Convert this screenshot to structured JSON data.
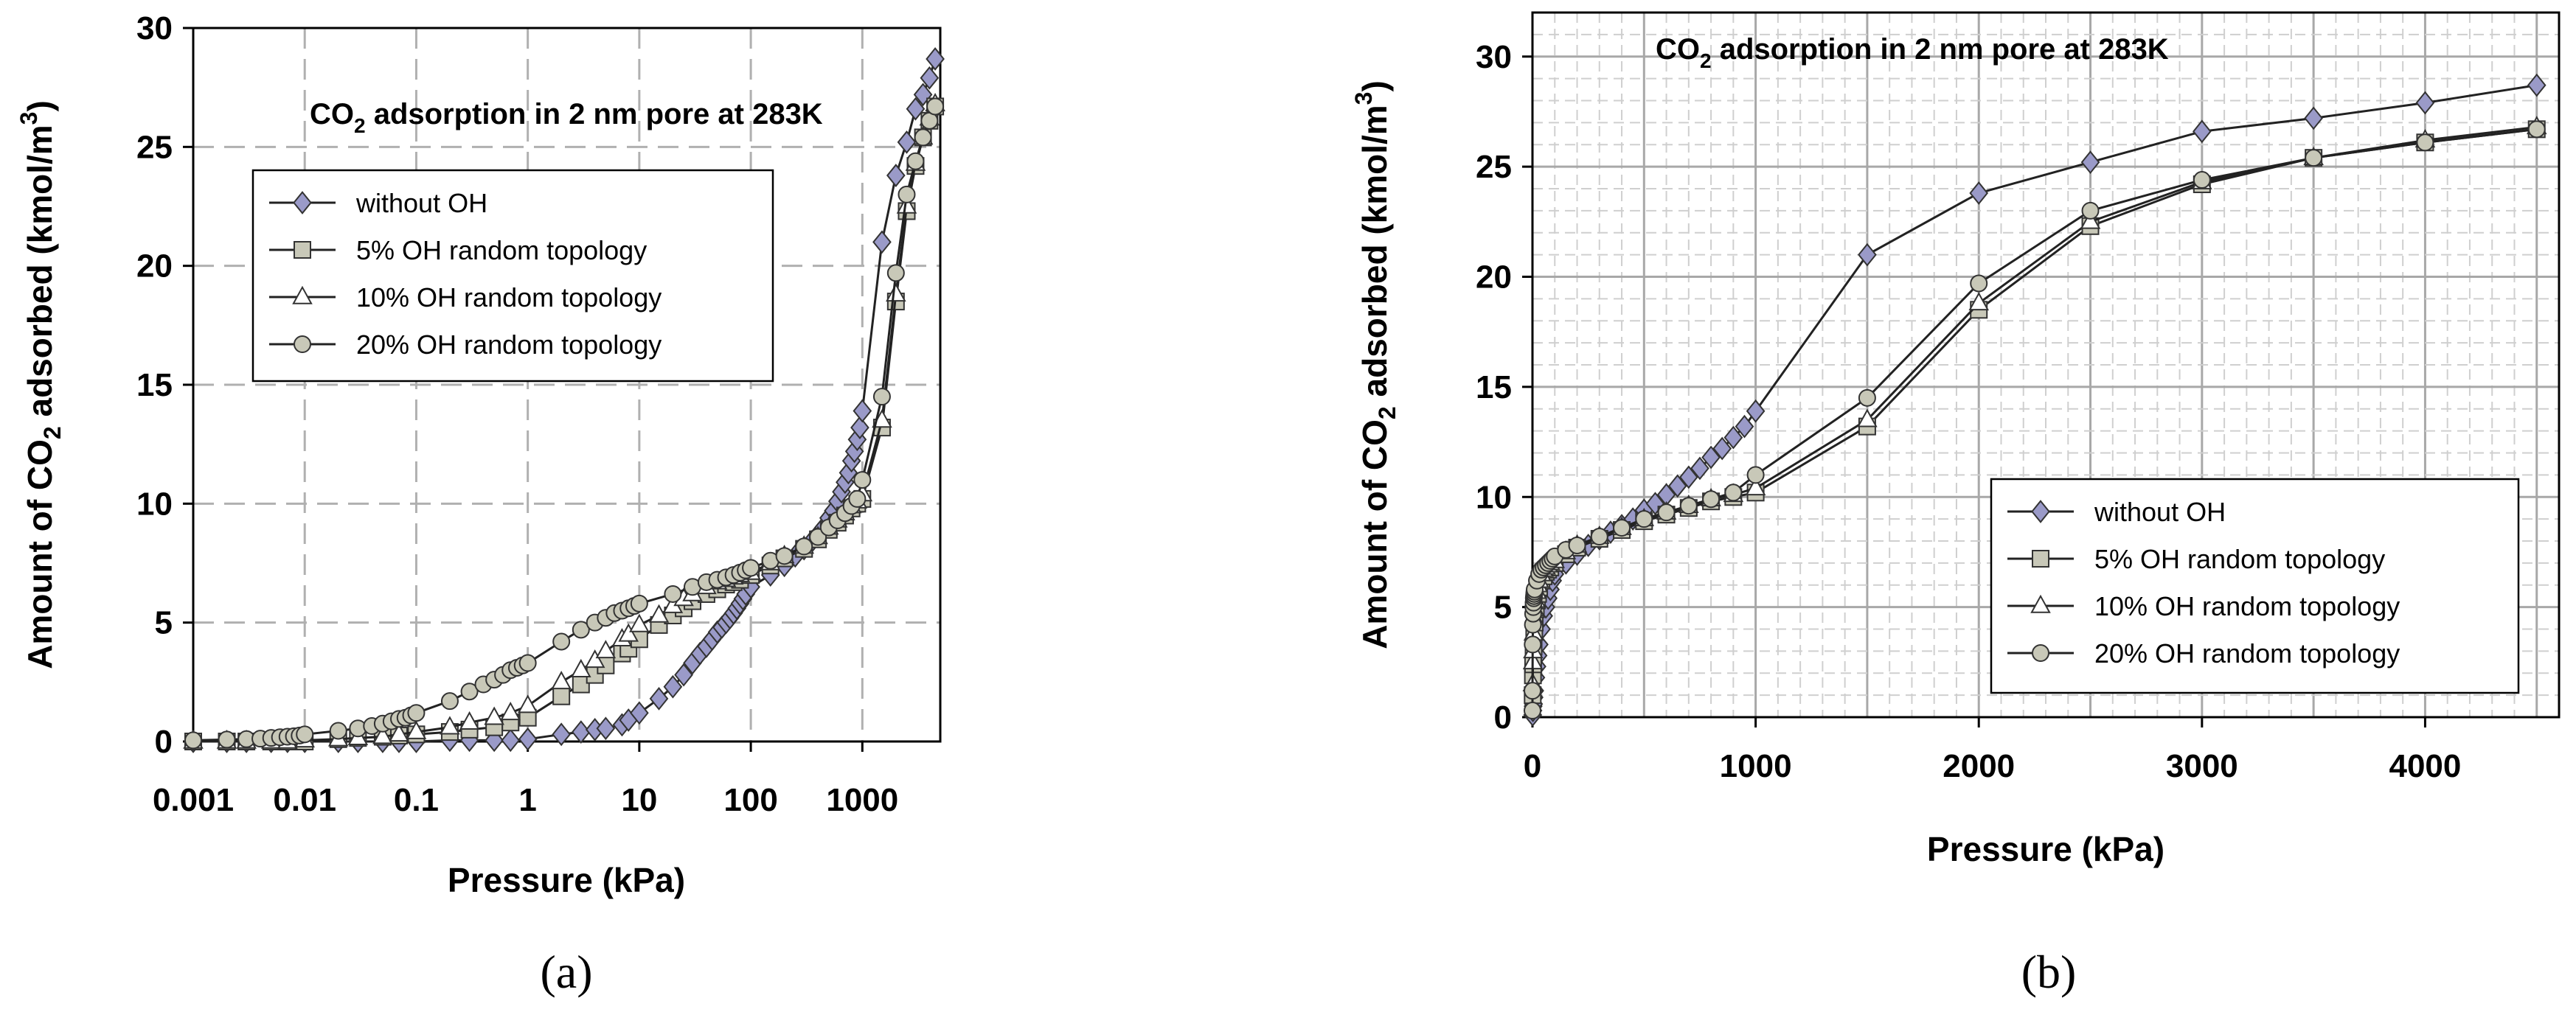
{
  "chart_data": [
    {
      "panel_label": "(a)",
      "type": "line",
      "x_scale": "log",
      "title_main": "CO",
      "title_sub": "2",
      "title_rest": " adsorption in 2 nm pore at 283K",
      "xlabel": "Pressure (kPa)",
      "ylabel_pre": "Amount of CO",
      "ylabel_sub": "2",
      "ylabel_mid": " adsorbed (kmol/m",
      "ylabel_sup": "3",
      "ylabel_post": ")",
      "xlim": [
        0.001,
        5000
      ],
      "ylim": [
        0,
        30
      ],
      "x_ticks": [
        0.001,
        0.01,
        0.1,
        1,
        10,
        100,
        1000
      ],
      "x_tick_labels": [
        "0.001",
        "0.01",
        "0.1",
        "1",
        "10",
        "100",
        "1000"
      ],
      "y_ticks": [
        0,
        5,
        10,
        15,
        20,
        25,
        30
      ],
      "y_tick_labels": [
        "0",
        "5",
        "10",
        "15",
        "20",
        "25",
        "30"
      ],
      "grid": true,
      "legend_position": "upper-left",
      "series": [
        {
          "name": "without OH",
          "marker": "diamond",
          "fill": "#9a9ac8",
          "x": [
            0.001,
            0.002,
            0.003,
            0.005,
            0.007,
            0.01,
            0.02,
            0.03,
            0.05,
            0.07,
            0.1,
            0.2,
            0.3,
            0.5,
            0.7,
            1,
            2,
            3,
            4,
            5,
            7,
            8,
            10,
            15,
            20,
            25,
            30,
            35,
            40,
            45,
            50,
            55,
            60,
            65,
            70,
            75,
            80,
            85,
            90,
            100,
            150,
            200,
            250,
            300,
            350,
            400,
            450,
            500,
            550,
            600,
            650,
            700,
            750,
            800,
            850,
            900,
            950,
            1000,
            1500,
            2000,
            2500,
            3000,
            3500,
            4000,
            4500
          ],
          "y": [
            0,
            0,
            0,
            0,
            0,
            0,
            0,
            0,
            0,
            0,
            0,
            0.05,
            0.05,
            0.05,
            0.05,
            0.1,
            0.3,
            0.4,
            0.5,
            0.55,
            0.7,
            0.9,
            1.2,
            1.8,
            2.3,
            2.8,
            3.3,
            3.7,
            4.0,
            4.3,
            4.6,
            4.8,
            5.0,
            5.2,
            5.4,
            5.6,
            5.8,
            6.0,
            6.2,
            6.5,
            7.0,
            7.4,
            7.8,
            8.1,
            8.4,
            8.7,
            9.0,
            9.4,
            9.7,
            10.1,
            10.5,
            10.9,
            11.3,
            11.8,
            12.2,
            12.7,
            13.2,
            13.9,
            21.0,
            23.8,
            25.2,
            26.6,
            27.2,
            27.9,
            28.7
          ]
        },
        {
          "name": "5% OH random topology",
          "marker": "square",
          "fill": "#c8c8b8",
          "x": [
            0.001,
            0.002,
            0.003,
            0.005,
            0.007,
            0.01,
            0.02,
            0.03,
            0.05,
            0.07,
            0.1,
            0.2,
            0.3,
            0.5,
            0.7,
            1,
            2,
            3,
            4,
            5,
            7,
            8,
            10,
            15,
            20,
            25,
            30,
            40,
            50,
            60,
            70,
            80,
            100,
            150,
            200,
            300,
            400,
            500,
            600,
            700,
            800,
            900,
            1000,
            1500,
            2000,
            2500,
            3000,
            3500,
            4000,
            4500
          ],
          "y": [
            0,
            0,
            0,
            0,
            0,
            0,
            0.1,
            0.15,
            0.2,
            0.25,
            0.3,
            0.4,
            0.5,
            0.6,
            0.8,
            1.0,
            1.9,
            2.4,
            2.8,
            3.2,
            3.7,
            3.9,
            4.3,
            4.9,
            5.3,
            5.6,
            5.9,
            6.2,
            6.4,
            6.6,
            6.7,
            6.8,
            7.0,
            7.4,
            7.7,
            8.1,
            8.5,
            8.9,
            9.2,
            9.5,
            9.8,
            10.0,
            10.2,
            13.2,
            18.5,
            22.3,
            24.2,
            25.4,
            26.1,
            26.7
          ]
        },
        {
          "name": "10% OH random topology",
          "marker": "triangle",
          "fill": "#ffffff",
          "x": [
            0.001,
            0.002,
            0.003,
            0.005,
            0.007,
            0.01,
            0.02,
            0.03,
            0.05,
            0.07,
            0.1,
            0.2,
            0.3,
            0.5,
            0.7,
            1,
            2,
            3,
            4,
            5,
            7,
            8,
            10,
            15,
            20,
            25,
            30,
            40,
            50,
            60,
            70,
            80,
            100,
            150,
            200,
            300,
            400,
            500,
            600,
            700,
            800,
            900,
            1000,
            1500,
            2000,
            2500,
            3000,
            3500,
            4000,
            4500
          ],
          "y": [
            0,
            0,
            0,
            0,
            0,
            0.05,
            0.1,
            0.15,
            0.2,
            0.3,
            0.4,
            0.6,
            0.8,
            1.0,
            1.2,
            1.5,
            2.5,
            3.0,
            3.4,
            3.8,
            4.3,
            4.5,
            4.9,
            5.3,
            5.7,
            6.0,
            6.2,
            6.5,
            6.7,
            6.8,
            6.9,
            7.0,
            7.1,
            7.5,
            7.8,
            8.2,
            8.6,
            9.0,
            9.3,
            9.6,
            9.9,
            10.1,
            10.4,
            13.5,
            18.8,
            22.5,
            24.3,
            25.4,
            26.2,
            26.8
          ]
        },
        {
          "name": "20% OH random topology",
          "marker": "circle",
          "fill": "#c8c8b8",
          "x": [
            0.001,
            0.002,
            0.003,
            0.004,
            0.005,
            0.006,
            0.007,
            0.008,
            0.009,
            0.01,
            0.02,
            0.03,
            0.04,
            0.05,
            0.06,
            0.07,
            0.08,
            0.09,
            0.1,
            0.2,
            0.3,
            0.4,
            0.5,
            0.6,
            0.7,
            0.8,
            0.9,
            1,
            2,
            3,
            4,
            5,
            6,
            7,
            8,
            9,
            10,
            20,
            30,
            40,
            50,
            60,
            70,
            80,
            90,
            100,
            150,
            200,
            300,
            400,
            500,
            600,
            700,
            800,
            900,
            1000,
            1500,
            2000,
            2500,
            3000,
            3500,
            4000,
            4500
          ],
          "y": [
            0.05,
            0.08,
            0.1,
            0.12,
            0.15,
            0.18,
            0.2,
            0.22,
            0.25,
            0.3,
            0.45,
            0.55,
            0.65,
            0.75,
            0.85,
            0.95,
            1.0,
            1.1,
            1.2,
            1.7,
            2.1,
            2.4,
            2.6,
            2.8,
            3.0,
            3.1,
            3.2,
            3.3,
            4.2,
            4.7,
            5.0,
            5.2,
            5.4,
            5.5,
            5.6,
            5.7,
            5.8,
            6.2,
            6.5,
            6.7,
            6.8,
            6.9,
            7.0,
            7.1,
            7.2,
            7.3,
            7.6,
            7.8,
            8.2,
            8.6,
            9.0,
            9.3,
            9.6,
            9.9,
            10.2,
            11.0,
            14.5,
            19.7,
            23.0,
            24.4,
            25.4,
            26.1,
            26.7
          ]
        }
      ]
    },
    {
      "panel_label": "(b)",
      "type": "line",
      "x_scale": "linear",
      "title_main": "CO",
      "title_sub": "2",
      "title_rest": " adsorption in 2 nm pore at 283K",
      "xlabel": "Pressure (kPa)",
      "ylabel_pre": "Amount of CO",
      "ylabel_sub": "2",
      "ylabel_mid": " adsorbed (kmol/m",
      "ylabel_sup": "3",
      "ylabel_post": ")",
      "xlim": [
        0,
        4600
      ],
      "ylim": [
        0,
        32
      ],
      "x_ticks": [
        0,
        1000,
        2000,
        3000,
        4000
      ],
      "x_tick_labels": [
        "0",
        "1000",
        "2000",
        "3000",
        "4000"
      ],
      "y_ticks": [
        0,
        5,
        10,
        15,
        20,
        25,
        30
      ],
      "y_tick_labels": [
        "0",
        "5",
        "10",
        "15",
        "20",
        "25",
        "30"
      ],
      "grid": true,
      "legend_position": "lower-right",
      "series": [
        {
          "name": "without OH",
          "marker": "diamond",
          "fill": "#9a9ac8",
          "x": [
            1,
            2,
            3,
            5,
            7,
            10,
            15,
            20,
            25,
            30,
            40,
            50,
            60,
            70,
            80,
            90,
            100,
            150,
            200,
            250,
            300,
            350,
            400,
            450,
            500,
            550,
            600,
            650,
            700,
            750,
            800,
            850,
            900,
            950,
            1000,
            1500,
            2000,
            2500,
            3000,
            3500,
            4000,
            4500
          ],
          "y": [
            0.1,
            0.3,
            0.5,
            0.6,
            0.9,
            1.2,
            1.8,
            2.3,
            2.8,
            3.3,
            4.0,
            4.6,
            5.0,
            5.4,
            5.8,
            6.2,
            6.5,
            7.0,
            7.4,
            7.8,
            8.1,
            8.4,
            8.7,
            9.0,
            9.4,
            9.7,
            10.1,
            10.5,
            10.9,
            11.3,
            11.8,
            12.2,
            12.7,
            13.2,
            13.9,
            21.0,
            23.8,
            25.2,
            26.6,
            27.2,
            27.9,
            28.7
          ]
        },
        {
          "name": "5% OH random topology",
          "marker": "square",
          "fill": "#c8c8b8",
          "x": [
            1,
            2,
            3,
            5,
            8,
            10,
            15,
            20,
            25,
            30,
            40,
            50,
            60,
            70,
            80,
            100,
            150,
            200,
            300,
            400,
            500,
            600,
            700,
            800,
            900,
            1000,
            1500,
            2000,
            2500,
            3000,
            3500,
            4000,
            4500
          ],
          "y": [
            1.0,
            1.9,
            2.4,
            3.2,
            3.9,
            4.3,
            4.9,
            5.3,
            5.6,
            5.9,
            6.2,
            6.4,
            6.6,
            6.7,
            6.8,
            7.0,
            7.4,
            7.7,
            8.1,
            8.5,
            8.9,
            9.2,
            9.5,
            9.8,
            10.0,
            10.2,
            13.2,
            18.5,
            22.3,
            24.2,
            25.4,
            26.1,
            26.7
          ]
        },
        {
          "name": "10% OH random topology",
          "marker": "triangle",
          "fill": "#ffffff",
          "x": [
            1,
            2,
            3,
            5,
            8,
            10,
            15,
            20,
            25,
            30,
            40,
            50,
            60,
            70,
            80,
            100,
            150,
            200,
            300,
            400,
            500,
            600,
            700,
            800,
            900,
            1000,
            1500,
            2000,
            2500,
            3000,
            3500,
            4000,
            4500
          ],
          "y": [
            1.5,
            2.5,
            3.0,
            3.8,
            4.5,
            4.9,
            5.3,
            5.7,
            6.0,
            6.2,
            6.5,
            6.7,
            6.8,
            6.9,
            7.0,
            7.1,
            7.5,
            7.8,
            8.2,
            8.6,
            9.0,
            9.3,
            9.6,
            9.9,
            10.1,
            10.4,
            13.5,
            18.8,
            22.5,
            24.3,
            25.4,
            26.2,
            26.8
          ]
        },
        {
          "name": "20% OH random topology",
          "marker": "circle",
          "fill": "#c8c8b8",
          "x": [
            0.01,
            0.1,
            1,
            2,
            3,
            4,
            5,
            6,
            7,
            8,
            9,
            10,
            20,
            30,
            40,
            50,
            60,
            70,
            80,
            90,
            100,
            150,
            200,
            300,
            400,
            500,
            600,
            700,
            800,
            900,
            1000,
            1500,
            2000,
            2500,
            3000,
            3500,
            4000,
            4500
          ],
          "y": [
            0.3,
            1.2,
            3.3,
            4.2,
            4.7,
            5.0,
            5.2,
            5.4,
            5.5,
            5.6,
            5.7,
            5.8,
            6.2,
            6.5,
            6.7,
            6.8,
            6.9,
            7.0,
            7.1,
            7.2,
            7.3,
            7.6,
            7.8,
            8.2,
            8.6,
            9.0,
            9.3,
            9.6,
            9.9,
            10.2,
            11.0,
            14.5,
            19.7,
            23.0,
            24.4,
            25.4,
            26.1,
            26.7
          ]
        }
      ]
    }
  ]
}
